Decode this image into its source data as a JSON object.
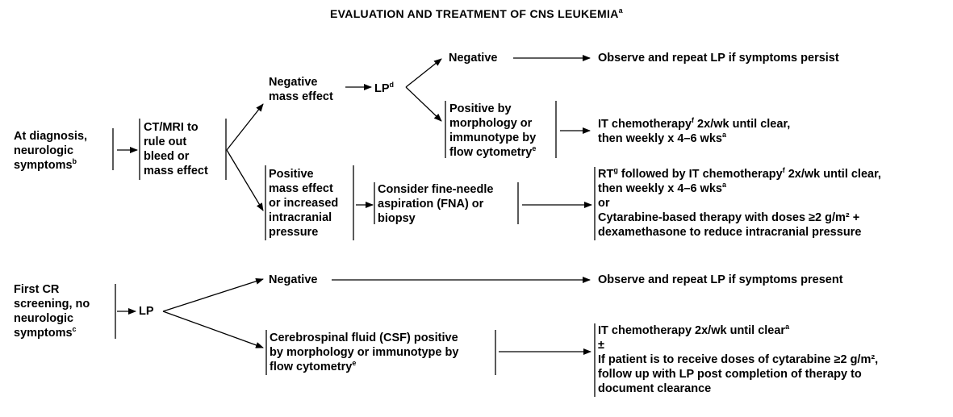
{
  "title": {
    "text": "EVALUATION AND TREATMENT OF CNS LEUKEMIA",
    "sup": "a"
  },
  "diagnosis": {
    "start": {
      "lines": [
        "At diagnosis,",
        "neurologic",
        "symptoms"
      ],
      "sup": "b"
    },
    "ct": {
      "lines": [
        "CT/MRI to",
        "rule out",
        "bleed or",
        "mass effect"
      ]
    },
    "neg_mass": {
      "lines": [
        "Negative",
        "mass effect"
      ]
    },
    "lp": {
      "text": "LP",
      "sup": "d"
    },
    "lp_negative": {
      "text": "Negative"
    },
    "observe": {
      "text": "Observe and repeat LP if symptoms persist"
    },
    "positive": {
      "lines": [
        "Positive by",
        "morphology or",
        "immunotype by",
        "flow cytometry"
      ],
      "sup": "e"
    },
    "it_chemo": {
      "line1": "IT chemotherapy",
      "line1_sup": "f",
      "line1_rest": " 2x/wk until clear,",
      "line2": "then weekly x 4–6 wks",
      "line2_sup": "a"
    },
    "pos_mass": {
      "lines": [
        "Positive",
        "mass effect",
        "or increased",
        "intracranial",
        "pressure"
      ]
    },
    "fna": {
      "lines": [
        "Consider fine-needle",
        "aspiration (FNA) or",
        "biopsy"
      ]
    },
    "rt": {
      "l1a": "RT",
      "l1_sup1": "g",
      "l1b": " followed by IT chemotherapy",
      "l1_sup2": "f",
      "l1c": " 2x/wk until clear,",
      "l2": "then weekly x 4–6 wks",
      "l2_sup": "a",
      "l3": "or",
      "l4": "Cytarabine-based therapy with doses ≥2 g/m² +",
      "l5": "dexamethasone to reduce intracranial pressure"
    }
  },
  "first_cr": {
    "start": {
      "lines": [
        "First CR",
        "screening, no",
        "neurologic",
        "symptoms"
      ],
      "sup": "c"
    },
    "lp": {
      "text": "LP"
    },
    "negative": {
      "text": "Negative"
    },
    "observe": {
      "text": "Observe and repeat LP if symptoms present"
    },
    "csf": {
      "lines": [
        "Cerebrospinal fluid (CSF) positive",
        "by morphology or immunotype by",
        "flow cytometry"
      ],
      "sup": "e"
    },
    "it": {
      "l1": "IT chemotherapy 2x/wk until clear",
      "l1_sup": "a",
      "l2": "±",
      "l3": "If patient is to receive doses of cytarabine ≥2 g/m²,",
      "l4": "follow up with LP post completion of therapy to",
      "l5": "document clearance"
    }
  }
}
